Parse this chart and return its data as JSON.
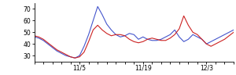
{
  "xlim": [
    0,
    44
  ],
  "ylim": [
    25,
    75
  ],
  "yticks": [
    30,
    40,
    50,
    60,
    70
  ],
  "xtick_labels": [
    "11/5",
    "11/19",
    "12/3"
  ],
  "xtick_pos": [
    10,
    24,
    38
  ],
  "blue_color": "#4455cc",
  "red_color": "#cc2222",
  "blue_x": [
    0,
    1,
    2,
    3,
    4,
    5,
    6,
    7,
    8,
    9,
    10,
    11,
    12,
    13,
    14,
    15,
    16,
    17,
    18,
    19,
    20,
    21,
    22,
    23,
    24,
    25,
    26,
    27,
    28,
    29,
    30,
    31,
    32,
    33,
    34,
    35,
    36,
    37,
    38,
    39,
    40,
    41,
    42,
    43,
    44
  ],
  "blue_y": [
    46,
    45,
    43,
    40,
    37,
    34,
    32,
    30,
    29,
    28,
    30,
    38,
    48,
    60,
    72,
    65,
    57,
    52,
    48,
    46,
    47,
    49,
    48,
    44,
    46,
    44,
    43,
    43,
    44,
    46,
    48,
    52,
    46,
    42,
    44,
    48,
    46,
    44,
    40,
    42,
    44,
    46,
    48,
    50,
    52
  ],
  "red_x": [
    0,
    1,
    2,
    3,
    4,
    5,
    6,
    7,
    8,
    9,
    10,
    11,
    12,
    13,
    14,
    15,
    16,
    17,
    18,
    19,
    20,
    21,
    22,
    23,
    24,
    25,
    26,
    27,
    28,
    29,
    30,
    31,
    32,
    33,
    34,
    35,
    36,
    37,
    38,
    39,
    40,
    41,
    42,
    43,
    44
  ],
  "red_y": [
    47,
    46,
    44,
    41,
    38,
    35,
    33,
    31,
    29,
    28,
    29,
    33,
    42,
    52,
    56,
    52,
    49,
    47,
    48,
    48,
    47,
    44,
    42,
    41,
    42,
    44,
    45,
    44,
    43,
    43,
    45,
    48,
    53,
    64,
    56,
    50,
    48,
    44,
    40,
    38,
    40,
    42,
    44,
    47,
    50
  ]
}
